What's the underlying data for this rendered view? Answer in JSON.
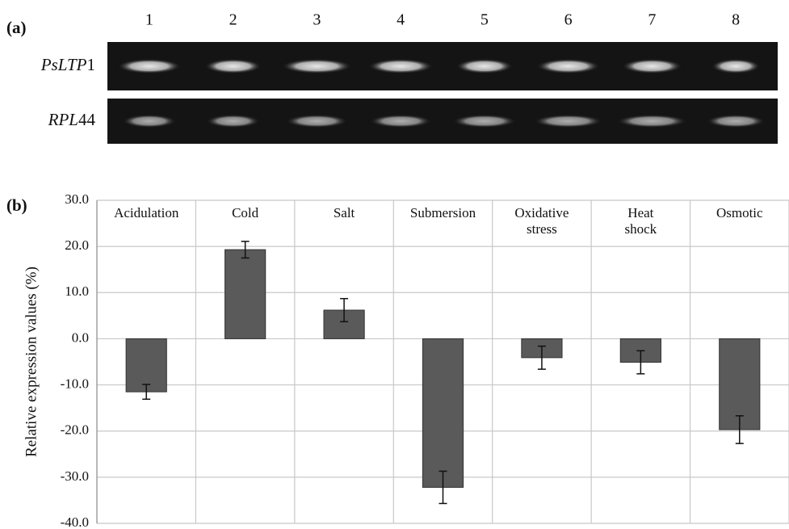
{
  "chart_data": {
    "type": "bar",
    "gel": {
      "panel_label": "(a)",
      "lanes": [
        "1",
        "2",
        "3",
        "4",
        "5",
        "6",
        "7",
        "8"
      ],
      "rows": [
        {
          "label_italic": "PsLTP",
          "label_plain": "1"
        },
        {
          "label_italic": "RPL",
          "label_plain": "44"
        }
      ]
    },
    "panel_label": "(b)",
    "y_label": "Relative expression values (%)",
    "categories": [
      "Acidulation",
      "Cold",
      "Salt",
      "Submersion",
      "Oxidative\nstress",
      "Heat\nshock",
      "Osmotic"
    ],
    "values": [
      -11.5,
      19.3,
      6.2,
      -32.2,
      -4.1,
      -5.1,
      -19.7
    ],
    "errors": [
      1.6,
      1.8,
      2.5,
      3.5,
      2.5,
      2.5,
      3.0
    ],
    "color": "#5a5a5a",
    "ylim": [
      -40,
      30
    ],
    "yticks": [
      {
        "value": -40,
        "label": "-40.0"
      },
      {
        "value": -30,
        "label": "-30.0"
      },
      {
        "value": -20,
        "label": "-20.0"
      },
      {
        "value": -10,
        "label": "-10.0"
      },
      {
        "value": 0,
        "label": "0.0"
      },
      {
        "value": 10,
        "label": "10.0"
      },
      {
        "value": 20,
        "label": "20.0"
      },
      {
        "value": 30,
        "label": "30.0"
      }
    ],
    "grid": true
  }
}
